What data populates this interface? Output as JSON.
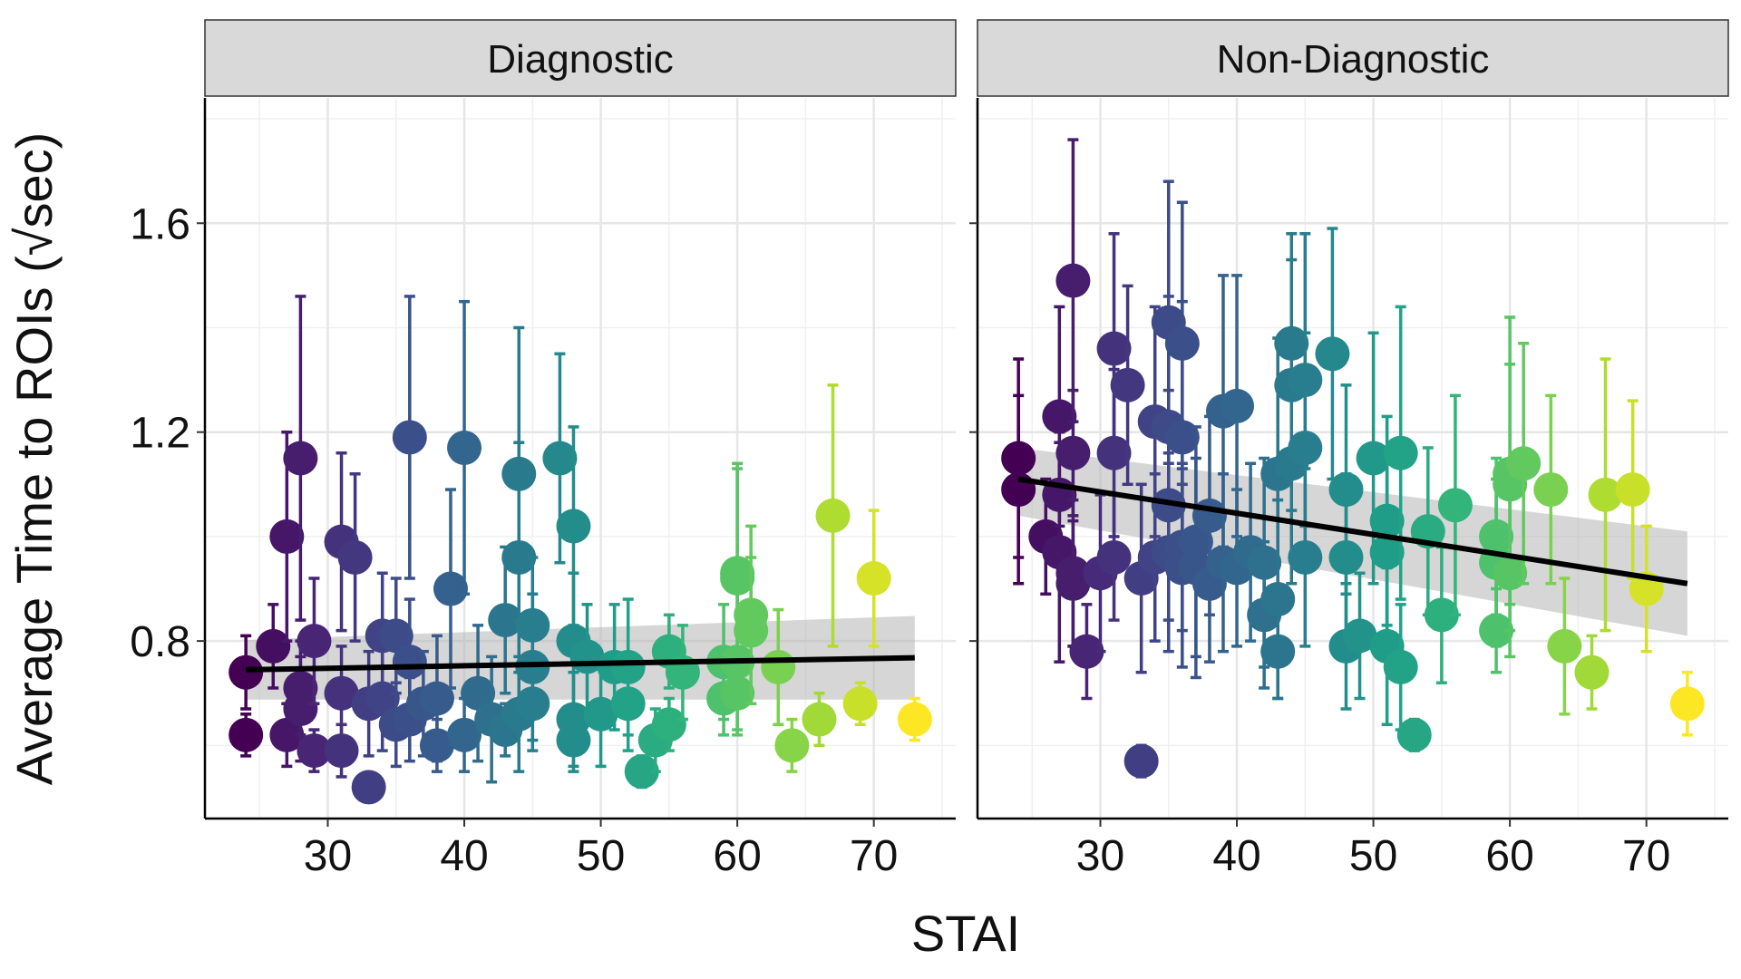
{
  "chart_data": {
    "type": "scatter",
    "xlabel": "STAI",
    "ylabel": "Average Time to ROIs (√sec)",
    "x_ticks": [
      "30",
      "40",
      "50",
      "60",
      "70"
    ],
    "y_ticks": [
      "0.8",
      "1.2",
      "1.6"
    ],
    "xlim": [
      21,
      76
    ],
    "ylim": [
      0.46,
      1.84
    ],
    "grid": true,
    "colormap": "viridis",
    "color_by": "x",
    "trend_color": "#000000",
    "band_color": "#b4b4b4",
    "facets": [
      {
        "label": "Diagnostic",
        "points": [
          [
            24,
            0.74,
            0.07
          ],
          [
            24,
            0.62,
            0.04
          ],
          [
            26,
            0.79,
            0.08
          ],
          [
            27,
            1.0,
            0.2
          ],
          [
            27,
            0.62,
            0.06
          ],
          [
            28,
            1.15,
            0.31
          ],
          [
            28,
            0.71,
            0.09
          ],
          [
            28,
            0.67,
            0.1
          ],
          [
            29,
            0.8,
            0.12
          ],
          [
            29,
            0.59,
            0.04
          ],
          [
            31,
            0.99,
            0.17
          ],
          [
            31,
            0.7,
            0.09
          ],
          [
            31,
            0.59,
            0.05
          ],
          [
            32,
            0.96,
            0.16
          ],
          [
            33,
            0.52,
            0.02
          ],
          [
            33,
            0.68,
            0.1
          ],
          [
            34,
            0.81,
            0.12
          ],
          [
            34,
            0.69,
            0.1
          ],
          [
            35,
            0.81,
            0.11
          ],
          [
            35,
            0.64,
            0.08
          ],
          [
            36,
            1.19,
            0.27
          ],
          [
            36,
            0.76,
            0.12
          ],
          [
            36,
            0.65,
            0.08
          ],
          [
            37,
            0.68,
            0.1
          ],
          [
            38,
            0.69,
            0.12
          ],
          [
            38,
            0.6,
            0.05
          ],
          [
            39,
            0.9,
            0.19
          ],
          [
            40,
            1.17,
            0.28
          ],
          [
            40,
            0.62,
            0.07
          ],
          [
            41,
            0.7,
            0.13
          ],
          [
            42,
            0.65,
            0.12
          ],
          [
            43,
            0.84,
            0.14
          ],
          [
            43,
            0.63,
            0.05
          ],
          [
            44,
            1.12,
            0.28
          ],
          [
            44,
            0.96,
            0.22
          ],
          [
            44,
            0.66,
            0.11
          ],
          [
            45,
            0.83,
            0.13
          ],
          [
            45,
            0.75,
            0.14
          ],
          [
            45,
            0.68,
            0.09
          ],
          [
            47,
            1.15,
            0.2
          ],
          [
            48,
            1.02,
            0.19
          ],
          [
            48,
            0.8,
            0.13
          ],
          [
            48,
            0.65,
            0.09
          ],
          [
            48,
            0.61,
            0.06
          ],
          [
            49,
            0.77,
            0.1
          ],
          [
            50,
            0.66,
            0.1
          ],
          [
            51,
            0.75,
            0.12
          ],
          [
            52,
            0.75,
            0.13
          ],
          [
            52,
            0.68,
            0.09
          ],
          [
            53,
            0.55,
            0.03
          ],
          [
            54,
            0.61,
            0.06
          ],
          [
            55,
            0.78,
            0.07
          ],
          [
            55,
            0.64,
            0.05
          ],
          [
            56,
            0.74,
            0.09
          ],
          [
            59,
            0.76,
            0.11
          ],
          [
            59,
            0.69,
            0.07
          ],
          [
            60,
            0.92,
            0.21
          ],
          [
            60,
            0.93,
            0.21
          ],
          [
            60,
            0.76,
            0.14
          ],
          [
            60,
            0.7,
            0.07
          ],
          [
            61,
            0.85,
            0.17
          ],
          [
            61,
            0.82,
            0.14
          ],
          [
            63,
            0.75,
            0.11
          ],
          [
            64,
            0.6,
            0.05
          ],
          [
            66,
            0.65,
            0.05
          ],
          [
            67,
            1.04,
            0.25
          ],
          [
            69,
            0.68,
            0.04
          ],
          [
            70,
            0.92,
            0.13
          ],
          [
            73,
            0.65,
            0.04
          ]
        ],
        "trend": {
          "x": [
            24,
            73
          ],
          "y": [
            0.745,
            0.768
          ],
          "lower": [
            0.688,
            0.688
          ],
          "upper": [
            0.802,
            0.848
          ]
        }
      },
      {
        "label": "Non-Diagnostic",
        "points": [
          [
            24,
            1.15,
            0.19
          ],
          [
            24,
            1.09,
            0.18
          ],
          [
            26,
            1.0,
            0.11
          ],
          [
            27,
            1.23,
            0.21
          ],
          [
            27,
            1.08,
            0.12
          ],
          [
            27,
            0.97,
            0.21
          ],
          [
            28,
            1.49,
            0.27
          ],
          [
            28,
            1.16,
            0.12
          ],
          [
            28,
            0.93,
            0.14
          ],
          [
            28,
            0.91,
            0.12
          ],
          [
            29,
            0.78,
            0.09
          ],
          [
            30,
            0.93,
            0.15
          ],
          [
            31,
            1.36,
            0.22
          ],
          [
            31,
            1.16,
            0.16
          ],
          [
            31,
            0.96,
            0.12
          ],
          [
            32,
            1.29,
            0.19
          ],
          [
            33,
            0.57,
            0.03
          ],
          [
            33,
            0.92,
            0.18
          ],
          [
            34,
            1.22,
            0.22
          ],
          [
            34,
            0.96,
            0.16
          ],
          [
            35,
            1.41,
            0.27
          ],
          [
            35,
            1.21,
            0.25
          ],
          [
            35,
            1.06,
            0.22
          ],
          [
            35,
            0.97,
            0.19
          ],
          [
            36,
            1.37,
            0.27
          ],
          [
            36,
            1.19,
            0.26
          ],
          [
            36,
            0.98,
            0.16
          ],
          [
            36,
            0.94,
            0.19
          ],
          [
            37,
            0.99,
            0.22
          ],
          [
            37,
            0.94,
            0.21
          ],
          [
            38,
            1.04,
            0.19
          ],
          [
            38,
            0.91,
            0.15
          ],
          [
            39,
            1.24,
            0.26
          ],
          [
            39,
            0.95,
            0.17
          ],
          [
            40,
            1.25,
            0.25
          ],
          [
            40,
            0.94,
            0.15
          ],
          [
            41,
            0.97,
            0.17
          ],
          [
            42,
            0.95,
            0.2
          ],
          [
            42,
            0.85,
            0.14
          ],
          [
            43,
            1.12,
            0.26
          ],
          [
            43,
            0.88,
            0.19
          ],
          [
            43,
            0.78,
            0.09
          ],
          [
            44,
            1.37,
            0.21
          ],
          [
            44,
            1.29,
            0.24
          ],
          [
            44,
            1.14,
            0.23
          ],
          [
            45,
            1.3,
            0.28
          ],
          [
            45,
            1.17,
            0.22
          ],
          [
            45,
            0.96,
            0.17
          ],
          [
            47,
            1.35,
            0.24
          ],
          [
            48,
            1.09,
            0.2
          ],
          [
            48,
            0.96,
            0.16
          ],
          [
            48,
            0.79,
            0.12
          ],
          [
            49,
            0.81,
            0.12
          ],
          [
            50,
            1.15,
            0.24
          ],
          [
            51,
            1.03,
            0.2
          ],
          [
            51,
            0.97,
            0.19
          ],
          [
            51,
            0.79,
            0.15
          ],
          [
            52,
            1.16,
            0.28
          ],
          [
            52,
            0.75,
            0.12
          ],
          [
            53,
            0.62,
            0.03
          ],
          [
            54,
            1.01,
            0.16
          ],
          [
            55,
            0.85,
            0.13
          ],
          [
            56,
            1.06,
            0.21
          ],
          [
            59,
            1.0,
            0.15
          ],
          [
            59,
            0.95,
            0.16
          ],
          [
            59,
            0.82,
            0.08
          ],
          [
            60,
            1.12,
            0.3
          ],
          [
            60,
            1.1,
            0.23
          ],
          [
            60,
            0.93,
            0.16
          ],
          [
            61,
            1.14,
            0.23
          ],
          [
            63,
            1.09,
            0.18
          ],
          [
            64,
            0.79,
            0.13
          ],
          [
            66,
            0.74,
            0.07
          ],
          [
            67,
            1.08,
            0.26
          ],
          [
            69,
            1.09,
            0.17
          ],
          [
            70,
            0.9,
            0.12
          ],
          [
            73,
            0.68,
            0.06
          ]
        ],
        "trend": {
          "x": [
            24,
            73
          ],
          "y": [
            1.11,
            0.91
          ],
          "lower": [
            1.04,
            0.81
          ],
          "upper": [
            1.17,
            1.01
          ]
        }
      }
    ]
  }
}
